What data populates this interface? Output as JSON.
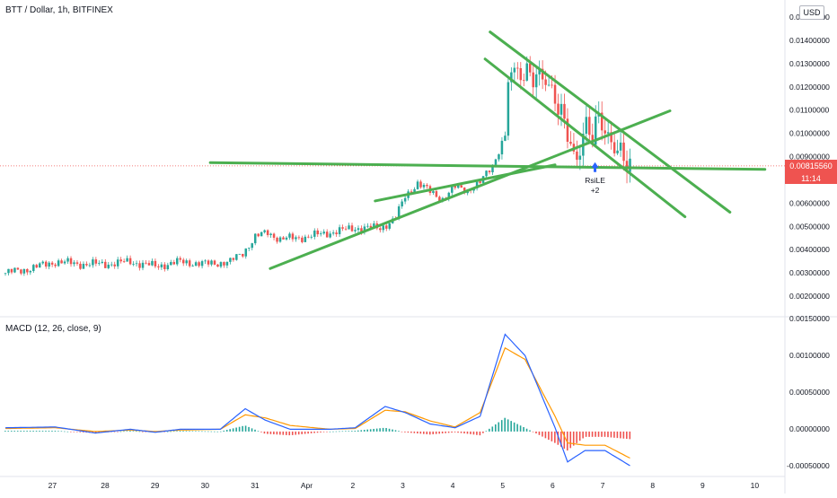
{
  "header": {
    "symbol_line": "BTT / Dollar, 1h, BITFINEX",
    "currency": "USD"
  },
  "indicator": {
    "label": "MACD (12, 26, close, 9)"
  },
  "price_tag": {
    "value": "0.00815560",
    "countdown": "11:14"
  },
  "annotation": {
    "label": "RsiLE",
    "sub": "+2"
  },
  "colors": {
    "up": "#26a69a",
    "down": "#ef5350",
    "trendline": "#4caf50",
    "macd_line": "#2962ff",
    "signal_line": "#ff9800"
  },
  "chart_data": [
    {
      "type": "candlestick",
      "x_ticks": [
        "27",
        "28",
        "29",
        "30",
        "31",
        "Apr",
        "2",
        "3",
        "4",
        "5",
        "6",
        "7",
        "8",
        "9",
        "10"
      ],
      "y_ticks": [
        "0.01500000",
        "0.01400000",
        "0.01300000",
        "0.01200000",
        "0.01100000",
        "0.01000000",
        "0.00900000",
        "0.00700000",
        "0.00600000",
        "0.00500000",
        "0.00400000",
        "0.00300000",
        "0.00200000"
      ],
      "ylim": [
        0.0015,
        0.0152
      ],
      "last_price": 0.0081556,
      "close_path": [
        [
          26.0,
          0.0034
        ],
        [
          26.5,
          0.0036
        ],
        [
          27.0,
          0.0039
        ],
        [
          27.5,
          0.0038
        ],
        [
          28.0,
          0.0038
        ],
        [
          28.5,
          0.0039
        ],
        [
          29.0,
          0.0037
        ],
        [
          29.5,
          0.0039
        ],
        [
          30.0,
          0.0038
        ],
        [
          30.5,
          0.0039
        ],
        [
          30.75,
          0.0043
        ],
        [
          31.0,
          0.005
        ],
        [
          31.25,
          0.0052
        ],
        [
          31.5,
          0.0049
        ],
        [
          32.0,
          0.005
        ],
        [
          32.5,
          0.0052
        ],
        [
          33.0,
          0.0054
        ],
        [
          33.5,
          0.0054
        ],
        [
          33.8,
          0.0058
        ],
        [
          34.0,
          0.0068
        ],
        [
          34.25,
          0.0074
        ],
        [
          34.5,
          0.007
        ],
        [
          34.75,
          0.0067
        ],
        [
          35.0,
          0.0072
        ],
        [
          35.25,
          0.0071
        ],
        [
          35.5,
          0.0074
        ],
        [
          35.75,
          0.0082
        ],
        [
          36.0,
          0.0095
        ],
        [
          36.05,
          0.0118
        ],
        [
          36.1,
          0.0125
        ],
        [
          36.25,
          0.0122
        ],
        [
          36.4,
          0.0124
        ],
        [
          36.6,
          0.012
        ],
        [
          36.8,
          0.0121
        ],
        [
          37.0,
          0.0112
        ],
        [
          37.25,
          0.0096
        ],
        [
          37.4,
          0.0083
        ],
        [
          37.5,
          0.009
        ],
        [
          37.6,
          0.01
        ],
        [
          37.75,
          0.0094
        ],
        [
          37.9,
          0.0105
        ],
        [
          38.0,
          0.0097
        ],
        [
          38.1,
          0.0093
        ],
        [
          38.25,
          0.0088
        ],
        [
          38.4,
          0.0084
        ],
        [
          38.5,
          0.00816
        ]
      ],
      "trendlines": [
        [
          [
            33.4,
            0.0066
          ],
          [
            37.0,
            0.0082
          ]
        ],
        [
          [
            31.3,
            0.0036
          ],
          [
            39.3,
            0.0106
          ]
        ],
        [
          [
            35.6,
            0.0129
          ],
          [
            39.6,
            0.0059
          ]
        ],
        [
          [
            35.7,
            0.0141
          ],
          [
            40.5,
            0.0061
          ]
        ],
        [
          [
            30.1,
            0.0083
          ],
          [
            41.2,
            0.008
          ]
        ]
      ]
    },
    {
      "type": "macd",
      "title": "MACD (12, 26, close, 9)",
      "y_ticks": [
        "0.00150000",
        "0.00100000",
        "0.00050000",
        "0.00000000",
        "-0.00050000"
      ],
      "ylim": [
        -0.00058,
        0.0015
      ],
      "macd": [
        [
          26.0,
          5e-05
        ],
        [
          27.0,
          6e-05
        ],
        [
          27.8,
          -2e-05
        ],
        [
          28.5,
          3e-05
        ],
        [
          29.0,
          -1e-05
        ],
        [
          29.5,
          3e-05
        ],
        [
          30.3,
          3e-05
        ],
        [
          30.8,
          0.0003
        ],
        [
          31.2,
          0.00015
        ],
        [
          31.7,
          3e-05
        ],
        [
          32.5,
          3e-05
        ],
        [
          33.0,
          5e-05
        ],
        [
          33.6,
          0.00033
        ],
        [
          34.0,
          0.00025
        ],
        [
          34.5,
          0.0001
        ],
        [
          35.0,
          5e-05
        ],
        [
          35.5,
          0.0002
        ],
        [
          36.0,
          0.00128
        ],
        [
          36.4,
          0.001
        ],
        [
          37.0,
          5e-05
        ],
        [
          37.25,
          -0.0004
        ],
        [
          37.6,
          -0.00025
        ],
        [
          38.0,
          -0.00025
        ],
        [
          38.5,
          -0.00045
        ]
      ],
      "signal": [
        [
          26.0,
          4e-05
        ],
        [
          27.0,
          5e-05
        ],
        [
          27.8,
          0.0
        ],
        [
          28.5,
          2e-05
        ],
        [
          29.0,
          0.0
        ],
        [
          29.5,
          2e-05
        ],
        [
          30.3,
          3e-05
        ],
        [
          30.8,
          0.00022
        ],
        [
          31.2,
          0.00018
        ],
        [
          31.7,
          8e-05
        ],
        [
          32.5,
          3e-05
        ],
        [
          33.0,
          4e-05
        ],
        [
          33.6,
          0.00028
        ],
        [
          34.0,
          0.00026
        ],
        [
          34.5,
          0.00014
        ],
        [
          35.0,
          6e-05
        ],
        [
          35.5,
          0.00025
        ],
        [
          36.0,
          0.0011
        ],
        [
          36.4,
          0.00095
        ],
        [
          37.0,
          0.0002
        ],
        [
          37.25,
          -0.00015
        ],
        [
          37.6,
          -0.00018
        ],
        [
          38.0,
          -0.00018
        ],
        [
          38.5,
          -0.00035
        ]
      ]
    }
  ]
}
